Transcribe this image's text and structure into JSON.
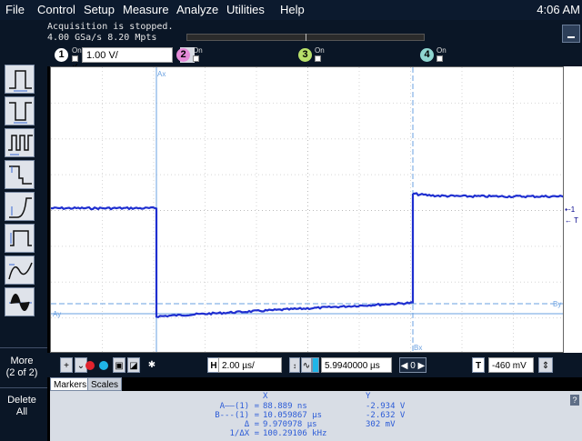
{
  "menu": [
    "File",
    "Control",
    "Setup",
    "Measure",
    "Analyze",
    "Utilities",
    "Help"
  ],
  "clock": "4:06 AM",
  "status": {
    "line1": "Acquisition is stopped.",
    "line2": "4.00 GSa/s  8.20 Mpts"
  },
  "channels": [
    {
      "num": "1",
      "on_label": "On",
      "color": "#ffffff",
      "on": true,
      "scale": "1.00 V/"
    },
    {
      "num": "2",
      "on_label": "On",
      "color": "#e58bd8",
      "on": false
    },
    {
      "num": "3",
      "on_label": "On",
      "color": "#b8e06a",
      "on": false
    },
    {
      "num": "4",
      "on_label": "On",
      "color": "#8fd6d0",
      "on": false
    }
  ],
  "sidebar": {
    "more": "More",
    "page": "(2 of 2)",
    "delete": "Delete",
    "all": "All"
  },
  "markers": {
    "ax_label": "Ax",
    "ay_label": "Ay",
    "bx_label": "Bx",
    "by_label": "By",
    "ch_ref": "1",
    "trig_ref": "T"
  },
  "controls": {
    "h_label": "H",
    "timebase": "2.00 µs/",
    "delay": "5.9940000 µs",
    "zoom": "0",
    "t_label": "T",
    "trigger_level": "-460 mV",
    "colors": {
      "red": "#e0232d",
      "cyan": "#1fb5e8",
      "white": "#ffffff"
    }
  },
  "tabs": [
    "Markers",
    "Scales"
  ],
  "marker_table": {
    "x_header": "X",
    "y_header": "Y",
    "rows": [
      {
        "label": "A——(1) =",
        "x": "88.889 ns",
        "y": "-2.934 V"
      },
      {
        "label": "B---(1) =",
        "x": "10.059867 µs",
        "y": "-2.632 V"
      },
      {
        "label": "Δ =",
        "x": "9.970978 µs",
        "y": "302 mV"
      },
      {
        "label": "1/ΔX =",
        "x": "100.29106 kHz",
        "y": ""
      }
    ]
  },
  "help": "?",
  "trace_color": "#1f2fd0"
}
